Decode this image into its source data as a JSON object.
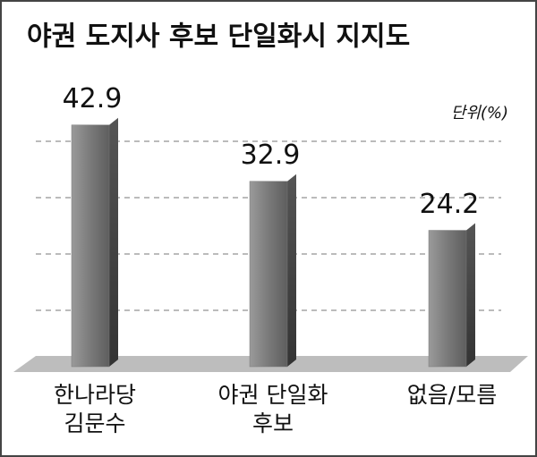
{
  "chart_data": {
    "type": "bar",
    "title": "야권 도지사 후보 단일화시 지지도",
    "unit": "단위(%)",
    "categories": [
      [
        "한나라당",
        "김문수"
      ],
      [
        "야권 단일화",
        "후보"
      ],
      [
        "없음/모름"
      ]
    ],
    "values": [
      42.9,
      32.9,
      24.2
    ],
    "color": "#7a7a7a",
    "ylim": [
      0,
      50
    ],
    "yticks": [
      10,
      20,
      30,
      40
    ],
    "grid": true
  }
}
